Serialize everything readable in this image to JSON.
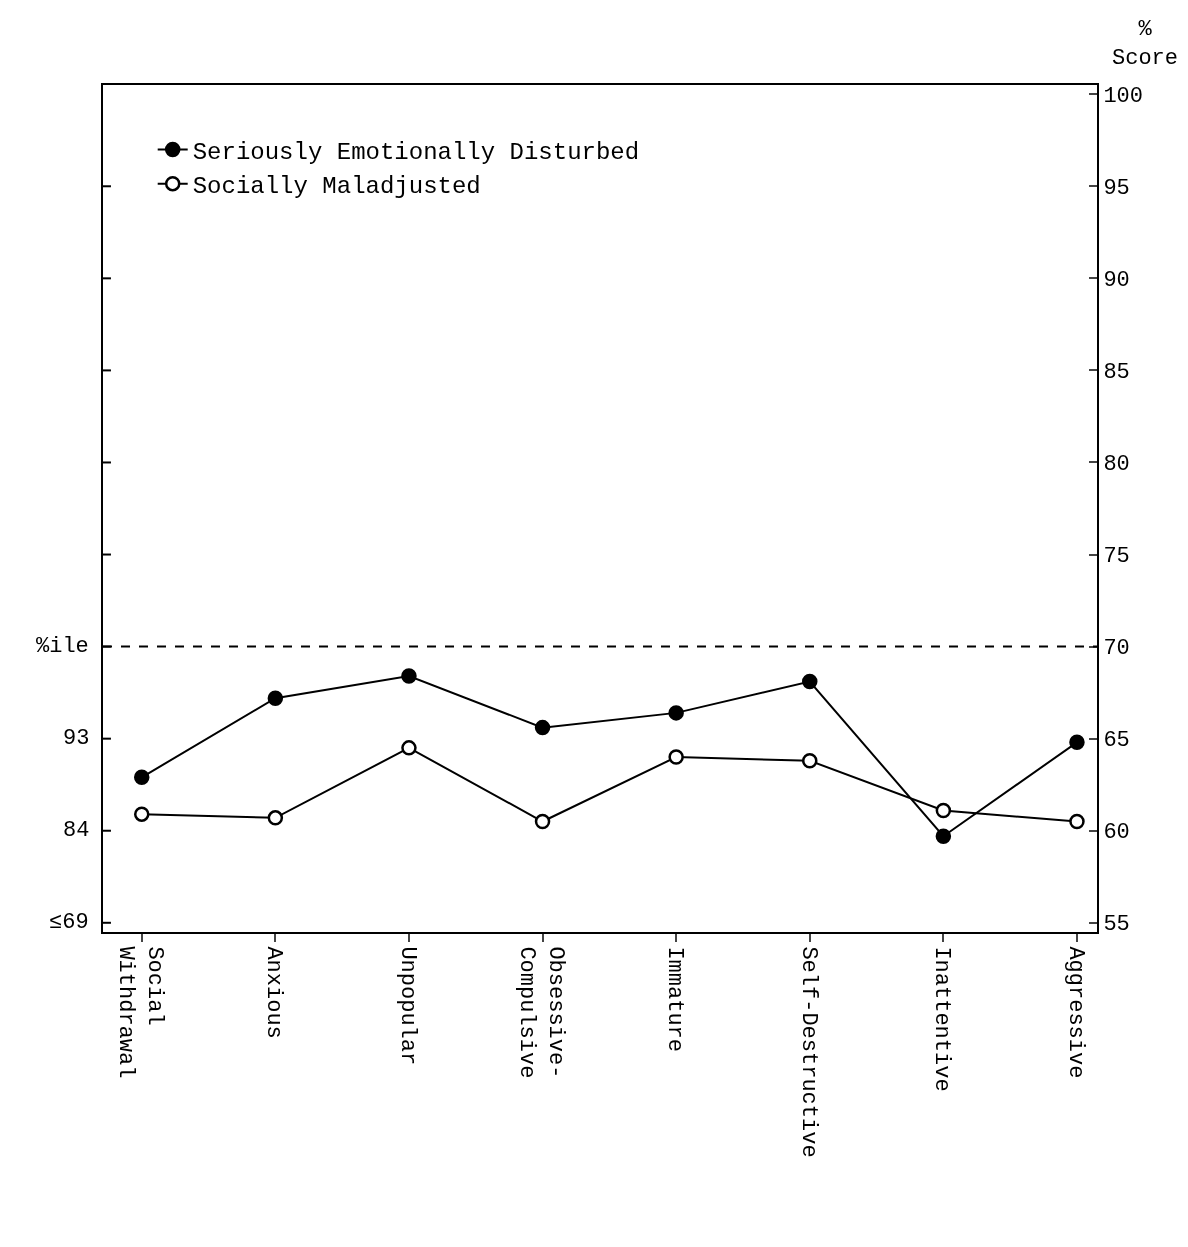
{
  "chart_data": {
    "type": "line",
    "categories": [
      "Social\nWithdrawal",
      "Anxious",
      "Unpopular",
      "Obsessive-\nCompulsive",
      "Immature",
      "Self-Destructive",
      "Inattentive",
      "Aggressive"
    ],
    "series": [
      {
        "name": "Seriously Emotionally Disturbed",
        "color": "#000000",
        "axis": "y2",
        "values": [
          62.9,
          67.2,
          68.4,
          65.6,
          66.4,
          68.1,
          59.7,
          64.8
        ]
      },
      {
        "name": "Socially Maladjusted",
        "color": "#ffffff",
        "axis": "y2",
        "values": [
          60.9,
          60.7,
          64.5,
          60.5,
          64.0,
          63.8,
          61.1,
          60.5
        ]
      }
    ],
    "ylabel": "%ile",
    "y2label": "%\nScore",
    "annotations": [
      "≤69",
      "84",
      "93"
    ],
    "y2lim": [
      54.5,
      100.5
    ],
    "y2ticks": [
      55,
      60,
      65,
      70,
      75,
      80,
      85,
      90,
      95,
      100
    ],
    "ref_lines": [
      {
        "axis": "y2",
        "value": 70,
        "line_style": "dashed",
        "color": "#000000"
      }
    ],
    "marker": "circle",
    "line_style": "solid",
    "legend": "top left"
  }
}
